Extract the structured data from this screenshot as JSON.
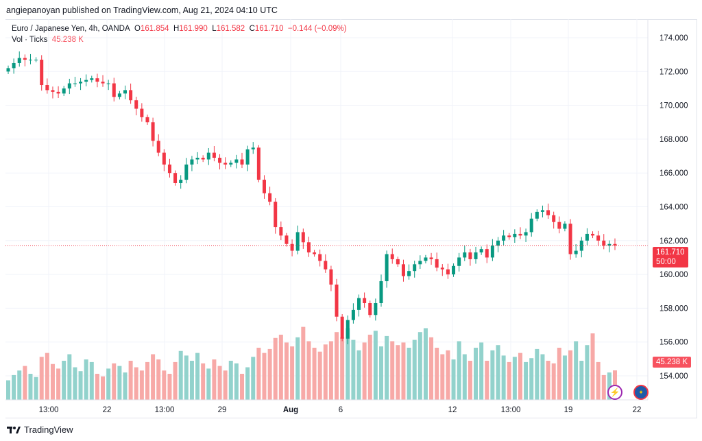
{
  "header": {
    "published": "angiepanoyan published on TradingView.com, Aug 21, 2024 04:10 UTC"
  },
  "legend": {
    "symbol": "Euro / Japanese Yen, 4h, OANDA",
    "o_label": "O",
    "o": "161.854",
    "h_label": "H",
    "h": "161.990",
    "l_label": "L",
    "l": "161.582",
    "c_label": "C",
    "c": "161.710",
    "change": "−0.144 (−0.09%)",
    "vol_label": "Vol · Ticks",
    "vol": "45.238 K"
  },
  "price_tag": {
    "price": "161.710",
    "countdown": "50:00"
  },
  "volume_tag": "45.238 K",
  "footer": {
    "brand": "TradingView"
  },
  "colors": {
    "up": "#089981",
    "down": "#f23645",
    "up_vol": "#92d2cc",
    "down_vol": "#f7a9a7"
  },
  "chart_data": {
    "type": "candlestick",
    "title": "Euro / Japanese Yen, 4h, OANDA",
    "y_ticks": [
      "174.000",
      "172.000",
      "170.000",
      "168.000",
      "166.000",
      "164.000",
      "162.000",
      "160.000",
      "158.000",
      "156.000",
      "154.000"
    ],
    "ylim": [
      153.2,
      175.2
    ],
    "x_ticks": [
      "13:00",
      "22",
      "13:00",
      "29",
      "Aug",
      "6",
      "12",
      "13:00",
      "19",
      "22"
    ],
    "first_open": 172.0,
    "close": [
      172.2,
      172.5,
      172.8,
      172.7,
      172.7,
      172.7,
      171.2,
      170.9,
      170.8,
      170.7,
      171.0,
      171.3,
      171.3,
      171.4,
      171.5,
      171.6,
      171.4,
      171.3,
      171.3,
      170.5,
      170.7,
      170.9,
      170.3,
      169.8,
      169.3,
      169.0,
      167.9,
      167.2,
      166.5,
      166.0,
      165.4,
      165.6,
      166.5,
      166.8,
      166.9,
      166.8,
      167.2,
      166.9,
      166.6,
      166.5,
      166.6,
      166.8,
      166.5,
      167.4,
      167.5,
      165.6,
      164.8,
      164.3,
      162.8,
      162.3,
      161.8,
      161.4,
      162.5,
      161.9,
      161.3,
      161.2,
      160.8,
      160.3,
      159.4,
      157.5,
      156.2,
      157.3,
      157.9,
      158.6,
      158.3,
      157.6,
      158.3,
      159.6,
      161.2,
      160.9,
      160.6,
      159.9,
      160.2,
      160.6,
      160.8,
      161.0,
      160.9,
      160.4,
      160.3,
      160.0,
      160.5,
      161.0,
      161.3,
      160.9,
      161.3,
      161.5,
      161.0,
      161.7,
      162.0,
      162.3,
      162.2,
      162.4,
      162.3,
      162.5,
      163.3,
      163.7,
      163.8,
      163.5,
      163.1,
      162.7,
      163.0,
      161.2,
      161.4,
      162.0,
      162.4,
      162.3,
      162.0,
      161.7,
      161.8,
      161.71
    ],
    "volume_k": [
      30,
      38,
      45,
      52,
      40,
      35,
      66,
      72,
      55,
      48,
      60,
      70,
      50,
      44,
      62,
      58,
      40,
      36,
      48,
      56,
      52,
      42,
      60,
      50,
      45,
      58,
      70,
      62,
      45,
      40,
      58,
      75,
      68,
      60,
      72,
      56,
      48,
      62,
      52,
      45,
      60,
      56,
      40,
      50,
      66,
      80,
      72,
      78,
      95,
      100,
      88,
      82,
      96,
      112,
      90,
      80,
      74,
      85,
      90,
      104,
      96,
      110,
      92,
      76,
      88,
      100,
      106,
      82,
      98,
      90,
      84,
      88,
      80,
      92,
      104,
      110,
      96,
      80,
      70,
      76,
      62,
      90,
      70,
      60,
      80,
      88,
      60,
      76,
      84,
      68,
      58,
      66,
      72,
      58,
      64,
      78,
      70,
      60,
      56,
      80,
      68,
      76,
      90,
      60,
      84,
      102,
      58,
      38,
      42,
      45.238
    ]
  }
}
